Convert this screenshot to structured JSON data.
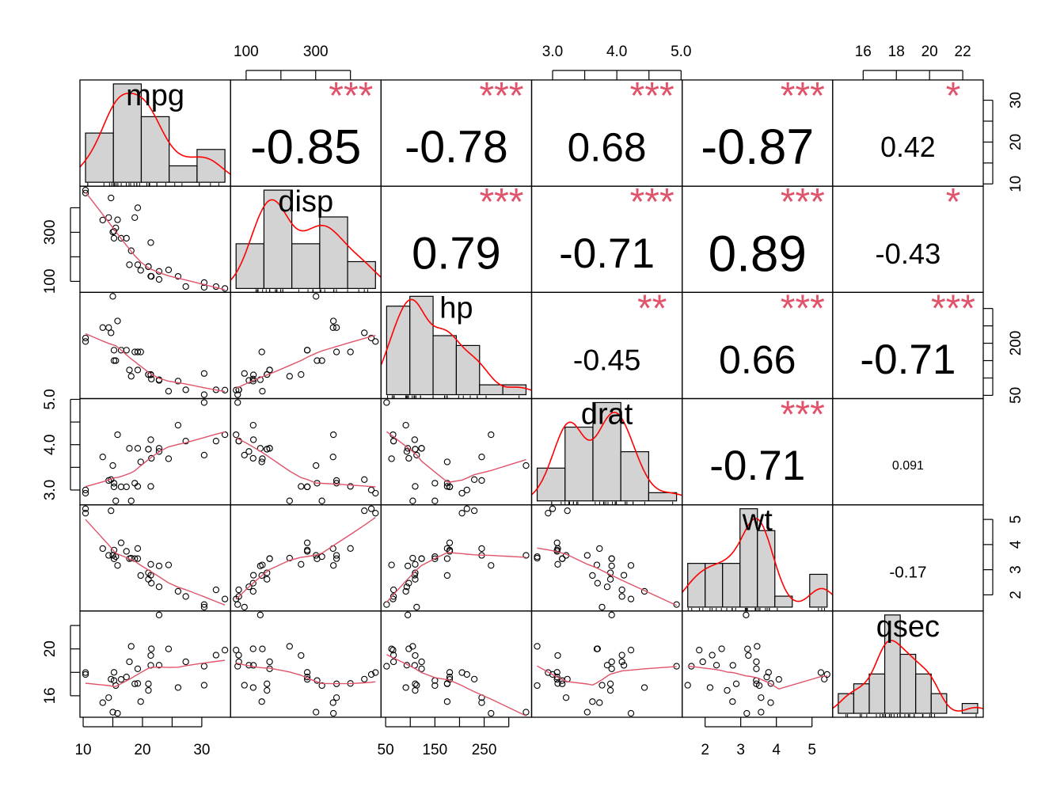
{
  "chart_data": {
    "type": "scatter",
    "variables": [
      {
        "name": "mpg",
        "values": [
          21.0,
          21.0,
          22.8,
          21.4,
          18.7,
          18.1,
          14.3,
          24.4,
          22.8,
          19.2,
          17.8,
          16.4,
          17.3,
          15.2,
          10.4,
          10.4,
          14.7,
          32.4,
          30.4,
          33.9,
          21.5,
          15.5,
          15.2,
          13.3,
          19.2,
          27.3,
          26.0,
          30.4,
          15.8,
          19.7,
          15.0,
          21.4
        ],
        "hist_breaks": [
          10,
          15,
          20,
          25,
          30,
          35
        ],
        "axis_ticks": [
          10,
          15,
          20,
          25,
          30
        ],
        "axis_labels": [
          "10",
          "",
          "20",
          "",
          "30"
        ]
      },
      {
        "name": "disp",
        "values": [
          160,
          160,
          108,
          258,
          360,
          225,
          360,
          146.7,
          140.8,
          167.6,
          167.6,
          275.8,
          275.8,
          275.8,
          472,
          460,
          440,
          78.7,
          75.7,
          71.1,
          120.1,
          318,
          304,
          350,
          400,
          79,
          120.3,
          95.1,
          351,
          145,
          301,
          121
        ],
        "hist_breaks": [
          0,
          100,
          200,
          300,
          400,
          500
        ],
        "axis_ticks": [
          100,
          200,
          300,
          400
        ],
        "axis_labels": [
          "100",
          "",
          "300",
          ""
        ]
      },
      {
        "name": "hp",
        "values": [
          110,
          110,
          93,
          110,
          175,
          105,
          245,
          62,
          95,
          123,
          123,
          180,
          180,
          180,
          205,
          215,
          230,
          66,
          52,
          65,
          97,
          150,
          150,
          245,
          175,
          66,
          91,
          113,
          264,
          175,
          335,
          109
        ],
        "hist_breaks": [
          50,
          100,
          150,
          200,
          250,
          300,
          350
        ],
        "axis_ticks": [
          50,
          100,
          150,
          200,
          250,
          300
        ],
        "axis_labels": [
          "50",
          "",
          "150",
          "",
          "250",
          ""
        ],
        "axis_ticks_right": [
          50,
          100,
          150,
          200,
          250,
          300
        ],
        "axis_labels_right": [
          "50",
          "",
          "",
          "200",
          "",
          ""
        ]
      },
      {
        "name": "drat",
        "values": [
          3.9,
          3.9,
          3.85,
          3.08,
          3.15,
          2.76,
          3.21,
          3.69,
          3.92,
          3.92,
          3.92,
          3.07,
          3.07,
          3.07,
          2.93,
          3.0,
          3.23,
          4.08,
          4.93,
          4.22,
          3.7,
          2.76,
          3.15,
          3.73,
          3.08,
          4.08,
          4.43,
          3.77,
          4.22,
          3.62,
          3.54,
          4.11
        ],
        "hist_breaks": [
          2.5,
          3.0,
          3.5,
          4.0,
          4.5,
          5.0
        ],
        "axis_ticks": [
          3.0,
          3.5,
          4.0,
          4.5,
          5.0
        ],
        "axis_labels": [
          "3.0",
          "",
          "4.0",
          "",
          "5.0"
        ]
      },
      {
        "name": "wt",
        "values": [
          2.62,
          2.875,
          2.32,
          3.215,
          3.44,
          3.46,
          3.57,
          3.19,
          3.15,
          3.44,
          3.44,
          4.07,
          3.73,
          3.78,
          5.25,
          5.424,
          5.345,
          2.2,
          1.615,
          1.835,
          2.465,
          3.52,
          3.435,
          3.84,
          3.845,
          1.935,
          2.14,
          1.513,
          3.17,
          2.77,
          3.57,
          2.78
        ],
        "hist_breaks": [
          1.5,
          2.0,
          2.5,
          3.0,
          3.5,
          4.0,
          4.5,
          5.0,
          5.5
        ],
        "axis_ticks": [
          2,
          3,
          4,
          5
        ],
        "axis_labels": [
          "2",
          "3",
          "4",
          "5"
        ]
      },
      {
        "name": "qsec",
        "values": [
          16.46,
          17.02,
          18.61,
          19.44,
          17.02,
          20.22,
          15.84,
          20.0,
          22.9,
          18.3,
          18.9,
          17.4,
          17.6,
          18.0,
          17.98,
          17.82,
          17.42,
          19.47,
          18.52,
          19.9,
          20.01,
          16.87,
          17.3,
          15.41,
          17.05,
          18.9,
          16.7,
          16.9,
          14.5,
          15.5,
          14.6,
          18.6
        ],
        "hist_breaks": [
          14,
          15,
          16,
          17,
          18,
          19,
          20,
          21,
          22,
          23
        ],
        "axis_ticks": [
          16,
          18,
          20,
          22
        ],
        "axis_labels": [
          "16",
          "18",
          "20",
          "22"
        ],
        "axis_ticks_left": [
          16,
          18,
          20,
          22
        ],
        "axis_labels_left": [
          "16",
          "",
          "20",
          ""
        ]
      }
    ],
    "correlations": [
      [
        null,
        "-0.85",
        "-0.78",
        "0.68",
        "-0.87",
        "0.42"
      ],
      [
        null,
        null,
        "0.79",
        "-0.71",
        "0.89",
        "-0.43"
      ],
      [
        null,
        null,
        null,
        "-0.45",
        "0.66",
        "-0.71"
      ],
      [
        null,
        null,
        null,
        null,
        "-0.71",
        "0.091"
      ],
      [
        null,
        null,
        null,
        null,
        null,
        "-0.17"
      ]
    ],
    "stars": [
      [
        null,
        "***",
        "***",
        "***",
        "***",
        "*"
      ],
      [
        null,
        null,
        "***",
        "***",
        "***",
        "*"
      ],
      [
        null,
        null,
        null,
        "**",
        "***",
        "***"
      ],
      [
        null,
        null,
        null,
        null,
        "***",
        ""
      ],
      [
        null,
        null,
        null,
        null,
        null,
        ""
      ]
    ],
    "colors": {
      "stars": "#DF536B",
      "smooth": "#DF536B",
      "density": "#FF0000",
      "hist_fill": "#D3D3D3",
      "points": "#000000"
    }
  }
}
